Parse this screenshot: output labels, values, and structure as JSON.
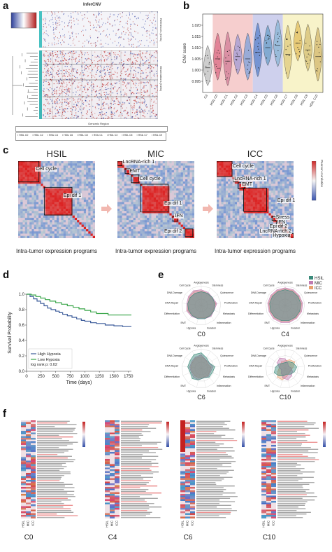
{
  "panel_a": {
    "label": "a",
    "title": "InferCNV",
    "right_label_top": "References (Cells)",
    "right_label_bottom": "Observations (Cells)",
    "xaxis": "Genomic Region",
    "legend_items": [
      "HSIL C0",
      "HSIL C2",
      "HSIL C4",
      "HSIL C6",
      "HSIL C8",
      "HSIL C1",
      "HSIL C3",
      "HSIL C5",
      "HSIL C7",
      "HSIL C9"
    ]
  },
  "panel_b": {
    "label": "b",
    "chart_data": {
      "type": "violin",
      "ylabel": "CNV score",
      "ylim": [
        0.99,
        1.025
      ],
      "yticks": [
        "0.995",
        "1.000",
        "1.005",
        "1.010",
        "1.015",
        "1.020"
      ],
      "categories": [
        "C3",
        "HSIL C0",
        "HSIL C1",
        "HSIL C2",
        "HSIL C3",
        "HSIL C4",
        "HSIL C5",
        "HSIL C6",
        "HSIL C7",
        "HSIL C8",
        "HSIL C9",
        "HSIL C10"
      ],
      "medians": [
        1.001,
        1.005,
        1.004,
        1.006,
        1.005,
        1.008,
        1.01,
        1.011,
        1.007,
        1.012,
        1.009,
        1.006
      ],
      "colors": [
        "#c9c9c9",
        "#e07b91",
        "#d88aa0",
        "#b0a3d4",
        "#8fa8d8",
        "#6c8ed1",
        "#7aa6cf",
        "#94b9d9",
        "#e3d18a",
        "#e6c66f",
        "#dcc882",
        "#d9c27c"
      ],
      "bands": [
        {
          "from": 1,
          "to": 4,
          "color": "#f4c6c6"
        },
        {
          "from": 5,
          "to": 7,
          "color": "#c6c8ea"
        },
        {
          "from": 8,
          "to": 11,
          "color": "#f7f1c0"
        }
      ]
    }
  },
  "panel_c": {
    "label": "c",
    "colorbar_label": "Pearson correlation",
    "matrices": [
      {
        "title": "HSIL",
        "footer": "Intra-tumor expression programs",
        "labels": [
          "Cell cycle",
          "Epi dif 1"
        ]
      },
      {
        "title": "MIC",
        "footer": "Intra-tumor expression programs",
        "labels": [
          "LncRNA-rich 1",
          "EMT",
          "Cell cycle",
          "Epi dif 1",
          "IFN",
          "Epi dif 2"
        ]
      },
      {
        "title": "ICC",
        "footer": "Intra-tumor expression programs",
        "labels": [
          "Cell cycle",
          "LncRNA-rich 1",
          "EMT",
          "Epi dif 1",
          "Stress",
          "IFN",
          "Epi dif 2",
          "LncRNA-rich 2",
          "Hypoxia"
        ]
      }
    ]
  },
  "panel_d": {
    "label": "d",
    "chart_data": {
      "type": "line",
      "xlabel": "Time (days)",
      "ylabel": "Survival Probability",
      "xlim": [
        0,
        1800
      ],
      "ylim": [
        0,
        1.0
      ],
      "xticks": [
        "0",
        "250",
        "500",
        "750",
        "1000",
        "1250",
        "1500",
        "1750"
      ],
      "yticks": [
        "0.0",
        "0.2",
        "0.4",
        "0.6",
        "0.8",
        "1.0"
      ],
      "series": [
        {
          "name": "High Hypoxia",
          "color": "#3b5b9a",
          "x": [
            0,
            60,
            120,
            180,
            240,
            300,
            360,
            420,
            500,
            560,
            620,
            700,
            780,
            860,
            940,
            1000,
            1100,
            1200,
            1350,
            1500,
            1650,
            1800
          ],
          "y": [
            1.0,
            0.97,
            0.94,
            0.91,
            0.88,
            0.85,
            0.82,
            0.8,
            0.78,
            0.76,
            0.74,
            0.72,
            0.7,
            0.68,
            0.66,
            0.65,
            0.63,
            0.62,
            0.6,
            0.59,
            0.58,
            0.58
          ]
        },
        {
          "name": "Low Hypoxia",
          "color": "#3aa64a",
          "x": [
            0,
            80,
            160,
            240,
            320,
            400,
            500,
            600,
            700,
            800,
            900,
            1000,
            1100,
            1200,
            1400,
            1600,
            1800
          ],
          "y": [
            1.0,
            0.99,
            0.97,
            0.95,
            0.93,
            0.91,
            0.89,
            0.87,
            0.85,
            0.83,
            0.81,
            0.79,
            0.77,
            0.75,
            0.73,
            0.73,
            0.73
          ]
        }
      ],
      "annotation": "log rank p:  0.02"
    }
  },
  "panel_e": {
    "label": "e",
    "legend": [
      {
        "name": "HSIL",
        "color": "#3a8a7a"
      },
      {
        "name": "MIC",
        "color": "#c07ab0"
      },
      {
        "name": "ICC",
        "color": "#e8a070"
      }
    ],
    "axes": [
      "Angiogenesis",
      "Stemness",
      "Quiescence",
      "Proliferation",
      "Metastasis",
      "Inflammation",
      "Invasion",
      "Hypoxia",
      "EMT",
      "Differentiation",
      "DNA Repair",
      "DNA Damage",
      "Cell Cycle"
    ],
    "radars": [
      {
        "title": "C0",
        "values": {
          "HSIL": [
            0.7,
            0.7,
            0.7,
            0.7,
            0.7,
            0.7,
            0.7,
            0.7,
            0.7,
            0.7,
            0.7,
            0.7,
            0.7
          ],
          "MIC": [
            0.8,
            0.75,
            0.7,
            0.8,
            0.7,
            0.75,
            0.7,
            0.7,
            0.75,
            0.8,
            0.75,
            0.8,
            0.85
          ],
          "ICC": [
            0.75,
            0.7,
            0.65,
            0.75,
            0.65,
            0.7,
            0.65,
            0.65,
            0.7,
            0.75,
            0.7,
            0.75,
            0.8
          ]
        }
      },
      {
        "title": "C4",
        "values": {
          "HSIL": [
            0.8,
            0.8,
            0.8,
            0.8,
            0.8,
            0.8,
            0.8,
            0.8,
            0.8,
            0.8,
            0.8,
            0.8,
            0.8
          ],
          "MIC": [
            0.9,
            0.9,
            0.88,
            0.9,
            0.9,
            0.88,
            0.9,
            0.9,
            0.9,
            0.88,
            0.9,
            0.9,
            0.9
          ],
          "ICC": [
            0.85,
            0.85,
            0.84,
            0.85,
            0.85,
            0.84,
            0.85,
            0.85,
            0.85,
            0.84,
            0.85,
            0.85,
            0.85
          ]
        }
      },
      {
        "title": "C6",
        "values": {
          "HSIL": [
            0.8,
            0.6,
            0.5,
            0.7,
            0.6,
            0.6,
            0.5,
            0.6,
            0.7,
            0.6,
            0.7,
            0.7,
            0.8
          ],
          "MIC": [
            0.7,
            0.5,
            0.5,
            0.6,
            0.5,
            0.55,
            0.5,
            0.6,
            0.6,
            0.55,
            0.6,
            0.6,
            0.65
          ],
          "ICC": [
            0.6,
            0.5,
            0.4,
            0.5,
            0.45,
            0.5,
            0.45,
            0.5,
            0.5,
            0.5,
            0.55,
            0.55,
            0.6
          ]
        }
      },
      {
        "title": "C10",
        "values": {
          "HSIL": [
            0.3,
            0.4,
            0.5,
            0.6,
            0.5,
            0.4,
            0.3,
            0.4,
            0.5,
            0.6,
            0.5,
            0.4,
            0.3
          ],
          "MIC": [
            0.5,
            0.3,
            0.2,
            0.3,
            0.4,
            0.5,
            0.6,
            0.5,
            0.3,
            0.2,
            0.3,
            0.5,
            0.6
          ],
          "ICC": [
            0.4,
            0.5,
            0.6,
            0.4,
            0.3,
            0.3,
            0.4,
            0.6,
            0.6,
            0.4,
            0.3,
            0.3,
            0.4
          ]
        }
      }
    ]
  },
  "panel_f": {
    "label": "f",
    "heatmaps": [
      {
        "title": "C0",
        "cols": [
          "HSIL",
          "MIC",
          "ICC"
        ]
      },
      {
        "title": "C4",
        "cols": [
          "HSIL",
          "MIC",
          "ICC"
        ]
      },
      {
        "title": "C6",
        "cols": [
          "HSIL",
          "MIC",
          "ICC"
        ]
      },
      {
        "title": "C10",
        "cols": [
          "HSIL",
          "MIC",
          "ICC"
        ]
      }
    ]
  }
}
